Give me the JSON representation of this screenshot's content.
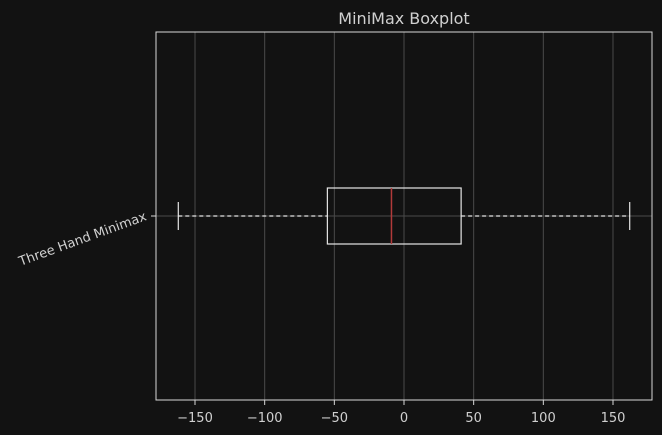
{
  "chart_data": {
    "type": "boxplot",
    "title": "MiniMax Boxplot",
    "orientation": "horizontal",
    "xlim": [
      -178,
      178
    ],
    "xticks": [
      -150,
      -100,
      -50,
      0,
      50,
      100,
      150
    ],
    "xtick_labels": [
      "−150",
      "−100",
      "−50",
      "0",
      "50",
      "100",
      "150"
    ],
    "grid": true,
    "categories": [
      "Three Hand Minimax"
    ],
    "boxes": [
      {
        "label": "Three Hand Minimax",
        "whisker_low": -162,
        "q1": -55,
        "median": -9,
        "q3": 41,
        "whisker_high": 162
      }
    ],
    "colors": {
      "background": "#121212",
      "axes": "#d8d8d8",
      "grid": "#4a4a4a",
      "box": "#e6e6e6",
      "median": "#b23a3a",
      "text": "#d0d0d0"
    }
  }
}
